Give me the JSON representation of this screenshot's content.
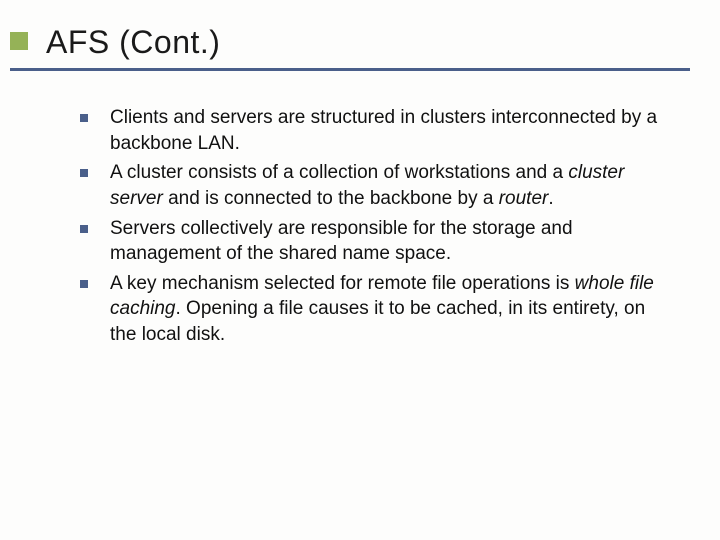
{
  "slide": {
    "title": "AFS (Cont.)",
    "title_fontsize": 32,
    "title_color": "#1a1a1a",
    "accent_square_color": "#95b257",
    "underline_color": "#4a5f8a",
    "bullet_marker_color": "#4a5f8a",
    "body_fontsize": 19,
    "body_color": "#111111",
    "background_color": "#fdfdfc",
    "bullets": [
      {
        "runs": [
          {
            "text": "Clients and servers are structured in clusters interconnected by a backbone LAN.",
            "italic": false
          }
        ]
      },
      {
        "runs": [
          {
            "text": "A cluster consists of a collection of workstations and a ",
            "italic": false
          },
          {
            "text": "cluster server",
            "italic": true
          },
          {
            "text": " and is connected to the backbone by a ",
            "italic": false
          },
          {
            "text": "router",
            "italic": true
          },
          {
            "text": ".",
            "italic": false
          }
        ]
      },
      {
        "runs": [
          {
            "text": "Servers collectively are responsible for the storage and management of the shared name space.",
            "italic": false
          }
        ]
      },
      {
        "runs": [
          {
            "text": "A key mechanism selected for remote file operations is ",
            "italic": false
          },
          {
            "text": "whole file caching",
            "italic": true
          },
          {
            "text": ".  Opening a file causes it to be cached, in its entirety, on the local disk.",
            "italic": false
          }
        ]
      }
    ]
  }
}
